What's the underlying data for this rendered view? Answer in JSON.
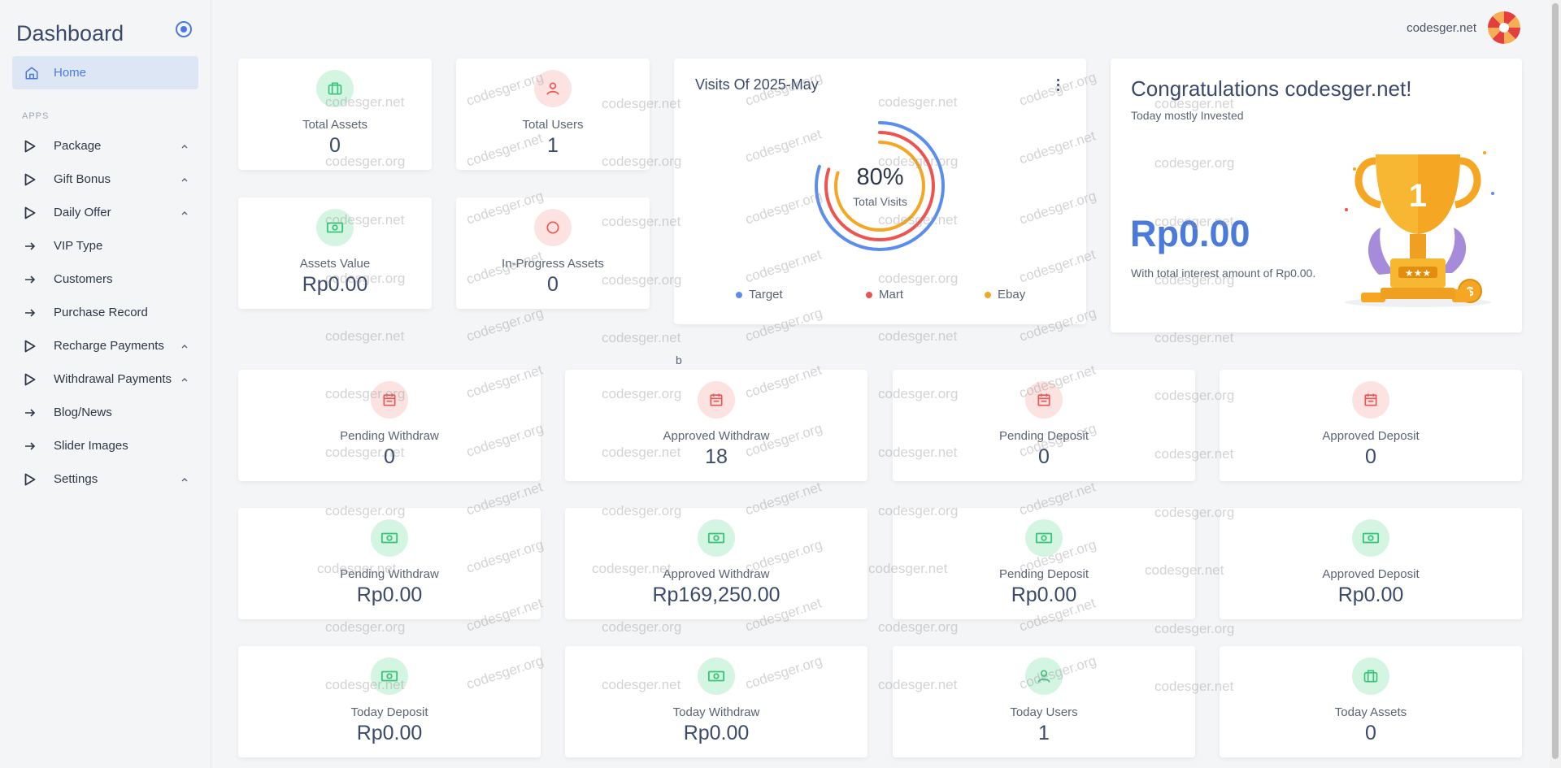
{
  "sidebar": {
    "brand": "Dashboard",
    "home_label": "Home",
    "section_label": "APPS",
    "items": [
      {
        "label": "Package",
        "icon": "play-triangle-icon",
        "expandable": true
      },
      {
        "label": "Gift Bonus",
        "icon": "play-triangle-icon",
        "expandable": true
      },
      {
        "label": "Daily Offer",
        "icon": "play-triangle-icon",
        "expandable": true
      },
      {
        "label": "VIP Type",
        "icon": "arrow-right-icon",
        "expandable": false
      },
      {
        "label": "Customers",
        "icon": "arrow-right-icon",
        "expandable": false
      },
      {
        "label": "Purchase Record",
        "icon": "arrow-right-icon",
        "expandable": false
      },
      {
        "label": "Recharge Payments",
        "icon": "play-triangle-icon",
        "expandable": true
      },
      {
        "label": "Withdrawal Payments",
        "icon": "play-triangle-icon",
        "expandable": true
      },
      {
        "label": "Blog/News",
        "icon": "arrow-right-icon",
        "expandable": false
      },
      {
        "label": "Slider Images",
        "icon": "arrow-right-icon",
        "expandable": false
      },
      {
        "label": "Settings",
        "icon": "play-triangle-icon",
        "expandable": true
      }
    ]
  },
  "header": {
    "username": "codesger.net"
  },
  "top_stats": [
    {
      "label": "Total Assets",
      "value": "0",
      "icon": "briefcase-icon",
      "tone": "green"
    },
    {
      "label": "Total Users",
      "value": "1",
      "icon": "user-icon",
      "tone": "red"
    },
    {
      "label": "Assets Value",
      "value": "Rp0.00",
      "icon": "cash-icon",
      "tone": "green"
    },
    {
      "label": "In-Progress Assets",
      "value": "0",
      "icon": "circle-icon",
      "tone": "red"
    }
  ],
  "visits": {
    "title": "Visits Of 2025-May",
    "percent": "80%",
    "caption": "Total Visits",
    "legend": [
      {
        "label": "Target",
        "color": "#5b8def"
      },
      {
        "label": "Mart",
        "color": "#ef5350"
      },
      {
        "label": "Ebay",
        "color": "#f5a623"
      }
    ]
  },
  "congrats": {
    "title": "Congratulations codesger.net!",
    "subtitle": "Today mostly Invested",
    "amount": "Rp0.00",
    "note": "With total interest amount of Rp0.00.",
    "trophy_number": "1"
  },
  "stray_text": "b",
  "row1": [
    {
      "label": "Pending Withdraw",
      "value": "0"
    },
    {
      "label": "Approved Withdraw",
      "value": "18"
    },
    {
      "label": "Pending Deposit",
      "value": "0"
    },
    {
      "label": "Approved Deposit",
      "value": "0"
    }
  ],
  "row2": [
    {
      "label": "Pending Withdraw",
      "value": "Rp0.00"
    },
    {
      "label": "Approved Withdraw",
      "value": "Rp169,250.00"
    },
    {
      "label": "Pending Deposit",
      "value": "Rp0.00"
    },
    {
      "label": "Approved Deposit",
      "value": "Rp0.00"
    }
  ],
  "row3": [
    {
      "label": "Today Deposit",
      "value": "Rp0.00",
      "icon": "cash-icon"
    },
    {
      "label": "Today Withdraw",
      "value": "Rp0.00",
      "icon": "cash-icon"
    },
    {
      "label": "Today Users",
      "value": "1",
      "icon": "user-icon"
    },
    {
      "label": "Today Assets",
      "value": "0",
      "icon": "briefcase-icon"
    }
  ],
  "watermarks": {
    "net": "codesger.net",
    "org": "codesger.org"
  }
}
